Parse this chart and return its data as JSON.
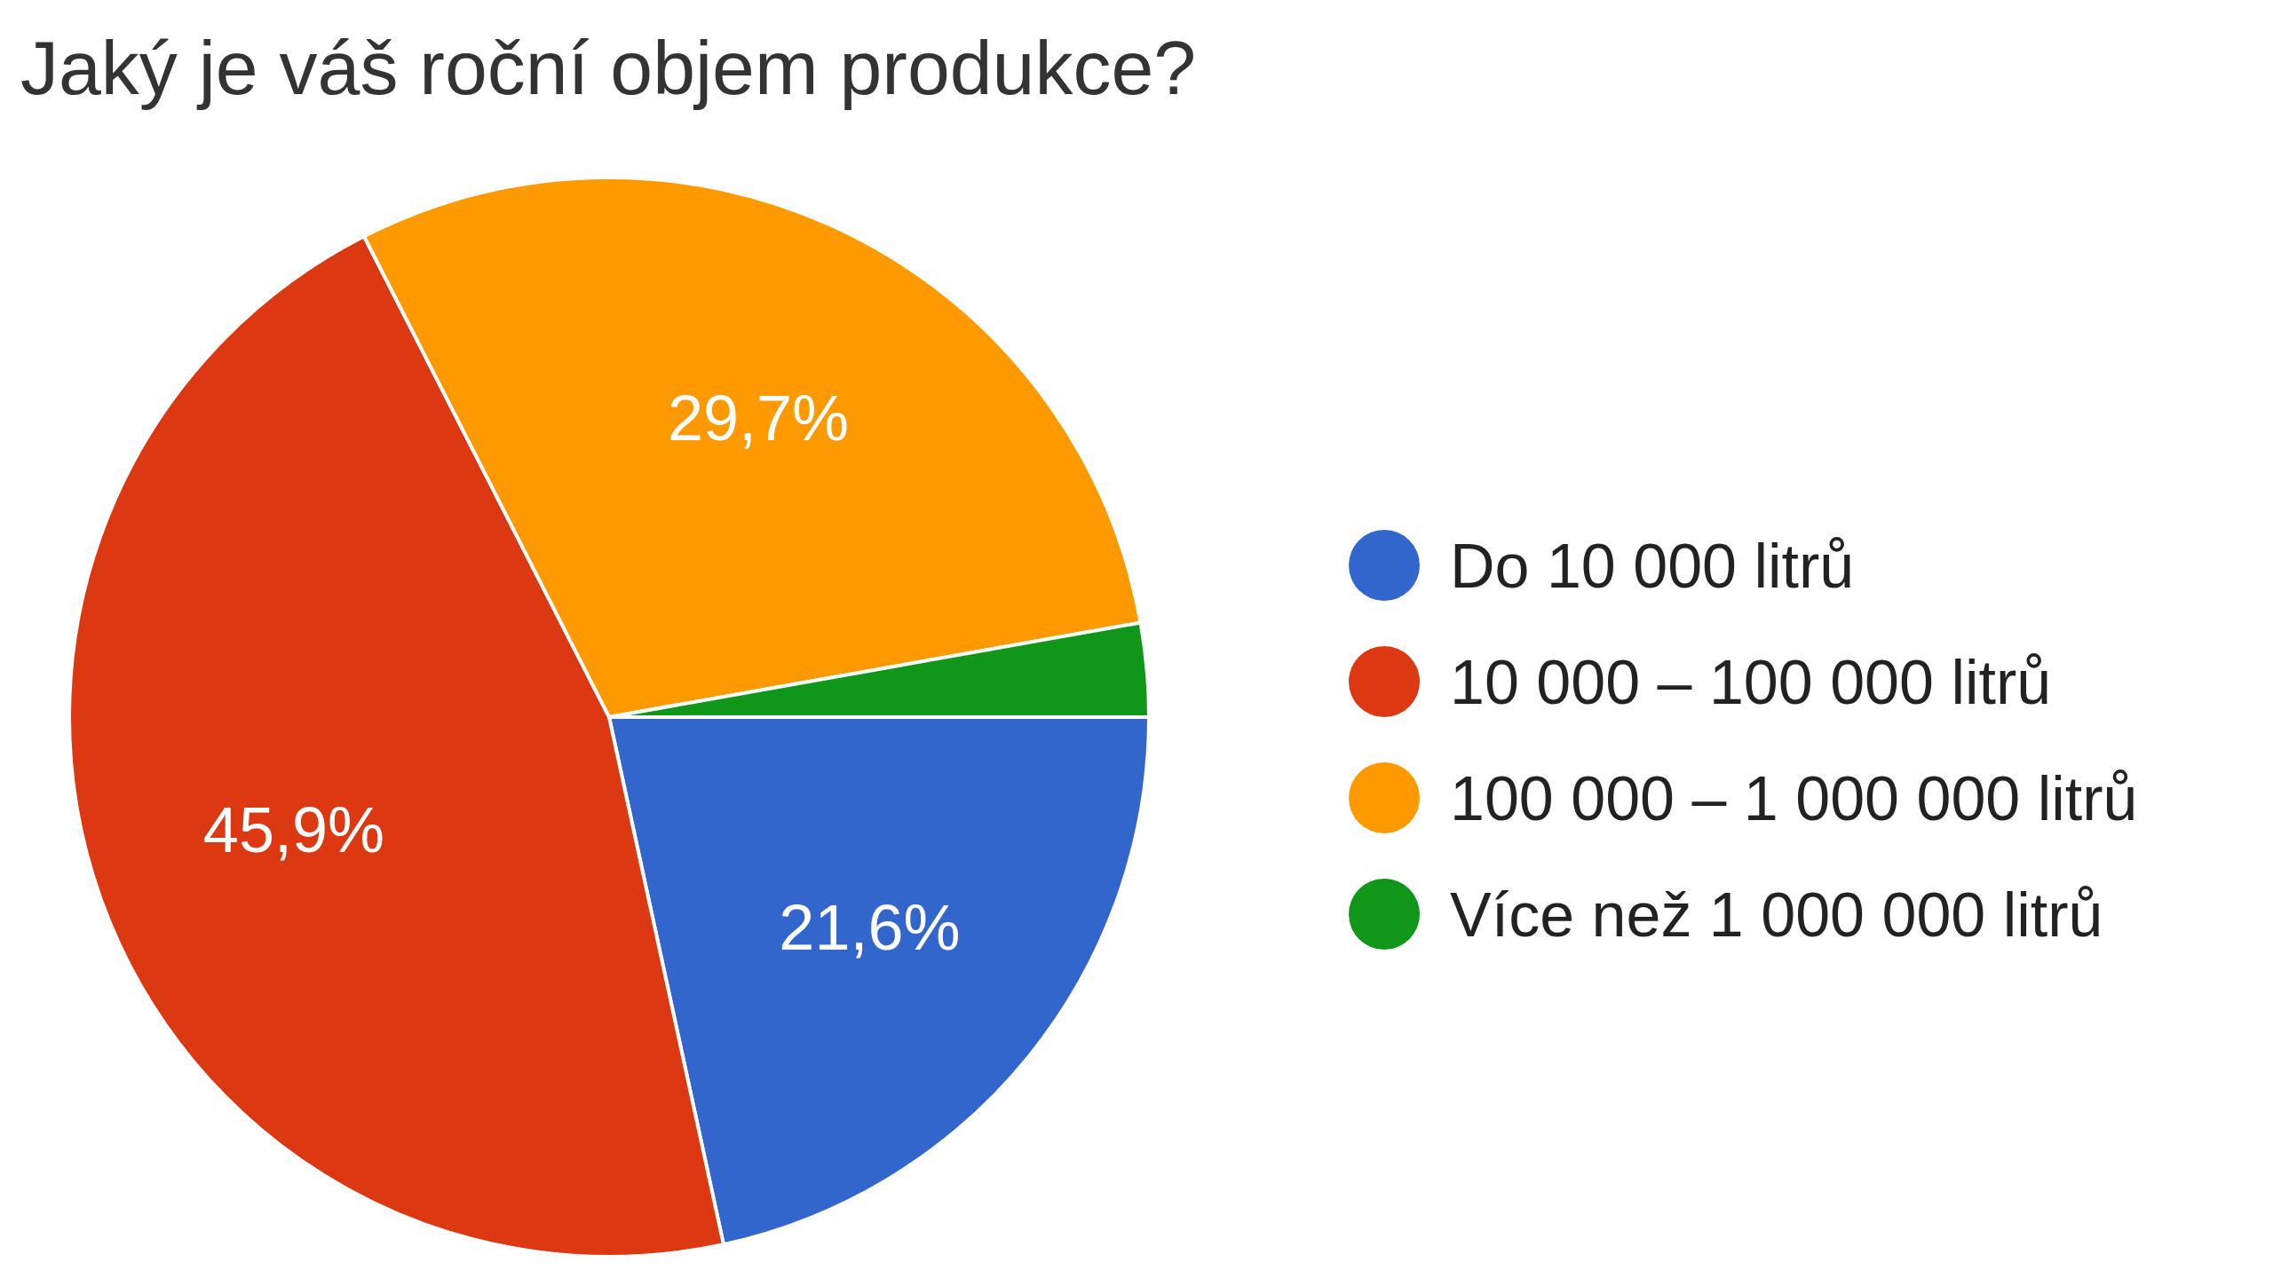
{
  "chart_data": {
    "type": "pie",
    "title": "Jaký je váš roční objem produkce?",
    "categories": [
      "Do 10 000 litrů",
      "10 000 – 100 000 litrů",
      "100 000 – 1 000 000 litrů",
      "Více než 1 000 000 litrů"
    ],
    "values": [
      21.6,
      45.9,
      29.7,
      2.8
    ],
    "colors": [
      "#3366cc",
      "#dc3912",
      "#ff9900",
      "#109618"
    ],
    "value_labels": [
      "21,6%",
      "45,9%",
      "29,7%",
      null
    ],
    "legend": "right"
  }
}
